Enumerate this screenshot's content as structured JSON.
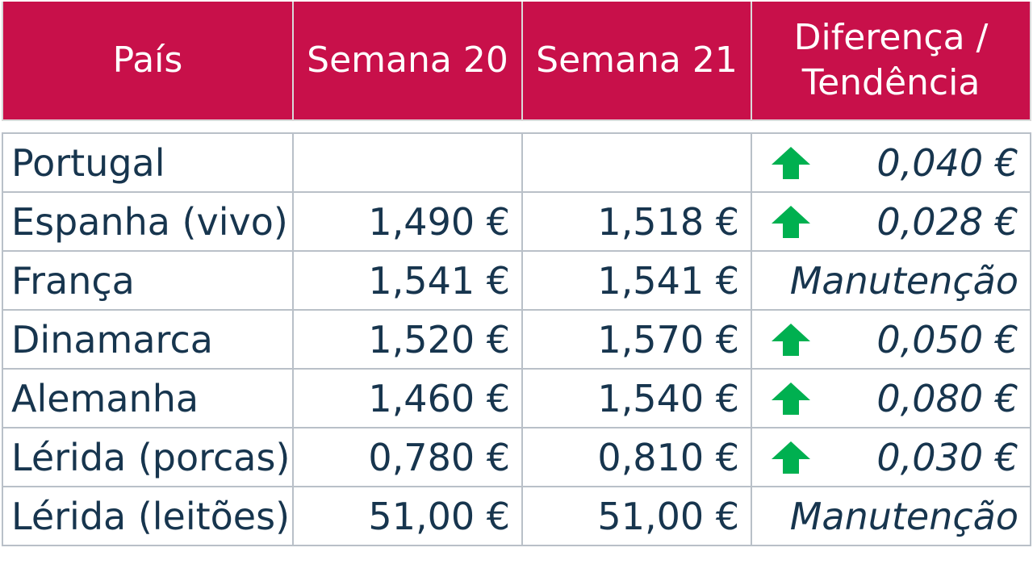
{
  "header": {
    "country": "País",
    "week20": "Semana 20",
    "week21": "Semana 21",
    "diff_line1": "Diferença /",
    "diff_line2": "Tendência"
  },
  "rows": [
    {
      "country": "Portugal",
      "week20": "",
      "week21": "",
      "trend": "up",
      "diff": "0,040 €"
    },
    {
      "country": "Espanha (vivo)",
      "week20": "1,490 €",
      "week21": "1,518 €",
      "trend": "up",
      "diff": "0,028 €"
    },
    {
      "country": "França",
      "week20": "1,541 €",
      "week21": "1,541 €",
      "trend": "none",
      "diff": "Manutenção"
    },
    {
      "country": "Dinamarca",
      "week20": "1,520 €",
      "week21": "1,570 €",
      "trend": "up",
      "diff": "0,050 €"
    },
    {
      "country": "Alemanha",
      "week20": "1,460 €",
      "week21": "1,540 €",
      "trend": "up",
      "diff": "0,080 €"
    },
    {
      "country": "Lérida (porcas)",
      "week20": "0,780 €",
      "week21": "0,810 €",
      "trend": "up",
      "diff": "0,030 €"
    },
    {
      "country": "Lérida (leitões)",
      "week20": "51,00 €",
      "week21": "51,00 €",
      "trend": "none",
      "diff": "Manutenção"
    }
  ],
  "colors": {
    "header_bg": "#c8104a",
    "text": "#17354e",
    "arrow": "#00b050"
  },
  "icons": {
    "up": "green-up-arrow-icon"
  }
}
